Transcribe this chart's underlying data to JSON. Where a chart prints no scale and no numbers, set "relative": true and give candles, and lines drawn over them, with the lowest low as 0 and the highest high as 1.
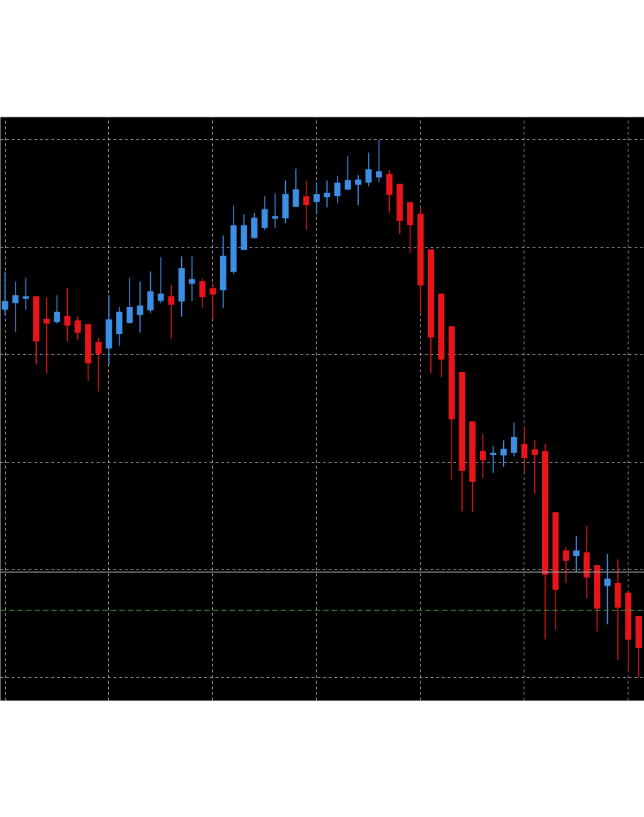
{
  "chart_data": {
    "type": "candlestick",
    "relative": true,
    "grid": true,
    "categories": [
      null,
      null,
      null,
      null,
      null,
      null,
      null,
      null,
      null,
      null,
      null,
      null,
      null,
      null,
      null,
      null,
      null,
      null,
      null,
      null,
      null,
      null,
      null,
      null,
      null,
      null,
      null,
      null,
      null,
      null,
      null,
      null,
      null,
      null,
      null,
      null,
      null,
      null,
      null,
      null,
      null,
      null,
      null,
      null,
      null,
      null,
      null,
      null,
      null,
      null,
      null,
      null,
      null,
      null,
      null,
      null,
      null,
      null,
      null,
      null,
      null,
      null
    ],
    "ohlc": [
      [
        0.684,
        0.755,
        0.674,
        0.7
      ],
      [
        0.696,
        0.736,
        0.643,
        0.711
      ],
      [
        0.704,
        0.743,
        0.684,
        0.709
      ],
      [
        0.709,
        0.709,
        0.582,
        0.625
      ],
      [
        0.667,
        0.707,
        0.566,
        0.658
      ],
      [
        0.661,
        0.711,
        0.658,
        0.68
      ],
      [
        0.672,
        0.724,
        0.625,
        0.654
      ],
      [
        0.664,
        0.671,
        0.628,
        0.641
      ],
      [
        0.657,
        0.657,
        0.551,
        0.584
      ],
      [
        0.624,
        0.632,
        0.532,
        0.601
      ],
      [
        0.612,
        0.711,
        0.582,
        0.666
      ],
      [
        0.639,
        0.689,
        0.617,
        0.68
      ],
      [
        0.659,
        0.743,
        0.658,
        0.689
      ],
      [
        0.674,
        0.736,
        0.641,
        0.692
      ],
      [
        0.683,
        0.755,
        0.678,
        0.718
      ],
      [
        0.7,
        0.782,
        0.696,
        0.714
      ],
      [
        0.709,
        0.73,
        0.63,
        0.693
      ],
      [
        0.699,
        0.783,
        0.671,
        0.761
      ],
      [
        0.732,
        0.783,
        0.7,
        0.741
      ],
      [
        0.737,
        0.742,
        0.687,
        0.707
      ],
      [
        0.724,
        0.733,
        0.667,
        0.712
      ],
      [
        0.72,
        0.822,
        0.687,
        0.784
      ],
      [
        0.754,
        0.878,
        0.75,
        0.841
      ],
      [
        0.795,
        0.861,
        0.795,
        0.841
      ],
      [
        0.817,
        0.864,
        0.816,
        0.855
      ],
      [
        0.836,
        0.895,
        0.832,
        0.871
      ],
      [
        0.853,
        0.9,
        0.836,
        0.858
      ],
      [
        0.854,
        0.924,
        0.845,
        0.899
      ],
      [
        0.875,
        0.946,
        0.875,
        0.908
      ],
      [
        0.895,
        0.924,
        0.832,
        0.878
      ],
      [
        0.884,
        0.921,
        0.861,
        0.899
      ],
      [
        0.893,
        0.924,
        0.874,
        0.901
      ],
      [
        0.895,
        0.933,
        0.882,
        0.92
      ],
      [
        0.907,
        0.97,
        0.907,
        0.925
      ],
      [
        0.916,
        0.934,
        0.878,
        0.926
      ],
      [
        0.92,
        0.976,
        0.913,
        0.945
      ],
      [
        0.93,
        1,
        0.921,
        0.941
      ],
      [
        0.936,
        0.943,
        0.864,
        0.897
      ],
      [
        0.918,
        0.918,
        0.825,
        0.849
      ],
      [
        0.884,
        0.884,
        0.789,
        0.841
      ],
      [
        0.862,
        0.875,
        0.678,
        0.729
      ],
      [
        0.796,
        0.796,
        0.566,
        0.632
      ],
      [
        0.714,
        0.714,
        0.558,
        0.591
      ],
      [
        0.653,
        0.653,
        0.368,
        0.48
      ],
      [
        0.568,
        0.568,
        0.309,
        0.384
      ],
      [
        0.476,
        0.476,
        0.308,
        0.364
      ],
      [
        0.421,
        0.453,
        0.371,
        0.404
      ],
      [
        0.414,
        0.43,
        0.38,
        0.418
      ],
      [
        0.413,
        0.441,
        0.392,
        0.425
      ],
      [
        0.418,
        0.474,
        0.411,
        0.447
      ],
      [
        0.434,
        0.466,
        0.38,
        0.408
      ],
      [
        0.424,
        0.441,
        0.342,
        0.414
      ],
      [
        0.421,
        0.434,
        0.071,
        0.191
      ],
      [
        0.307,
        0.307,
        0.088,
        0.163
      ],
      [
        0.236,
        0.242,
        0.176,
        0.217
      ],
      [
        0.226,
        0.263,
        0.196,
        0.236
      ],
      [
        0.233,
        0.282,
        0.147,
        0.186
      ],
      [
        0.209,
        0.209,
        0.086,
        0.128
      ],
      [
        0.17,
        0.23,
        0.099,
        0.184
      ],
      [
        0.176,
        0.22,
        0.033,
        0.13
      ],
      [
        0.158,
        0.158,
        0.012,
        0.07
      ],
      [
        0.114,
        0.114,
        0,
        0.055
      ]
    ],
    "colors": [
      "#3d8fe6",
      "#3d8fe6",
      "#3d8fe6",
      "#e8161b",
      "#e8161b",
      "#3d8fe6",
      "#e8161b",
      "#e8161b",
      "#e8161b",
      "#e8161b",
      "#3d8fe6",
      "#3d8fe6",
      "#3d8fe6",
      "#3d8fe6",
      "#3d8fe6",
      "#3d8fe6",
      "#e8161b",
      "#3d8fe6",
      "#3d8fe6",
      "#e8161b",
      "#e8161b",
      "#3d8fe6",
      "#3d8fe6",
      "#3d8fe6",
      "#3d8fe6",
      "#3d8fe6",
      "#3d8fe6",
      "#3d8fe6",
      "#3d8fe6",
      "#e8161b",
      "#3d8fe6",
      "#3d8fe6",
      "#3d8fe6",
      "#3d8fe6",
      "#3d8fe6",
      "#3d8fe6",
      "#3d8fe6",
      "#e8161b",
      "#e8161b",
      "#e8161b",
      "#e8161b",
      "#e8161b",
      "#e8161b",
      "#e8161b",
      "#e8161b",
      "#e8161b",
      "#e8161b",
      "#3d8fe6",
      "#3d8fe6",
      "#3d8fe6",
      "#e8161b",
      "#e8161b",
      "#e8161b",
      "#e8161b",
      "#e8161b",
      "#3d8fe6",
      "#e8161b",
      "#e8161b",
      "#3d8fe6",
      "#e8161b",
      "#e8161b",
      "#e8161b"
    ],
    "ref_lines": [
      {
        "axis": "y",
        "value": 0.196,
        "color": "#9a9a9a",
        "line_style": "solid"
      },
      {
        "axis": "y",
        "value": 0.125,
        "color": "#3f8f3f",
        "line_style": "dashed"
      }
    ]
  }
}
